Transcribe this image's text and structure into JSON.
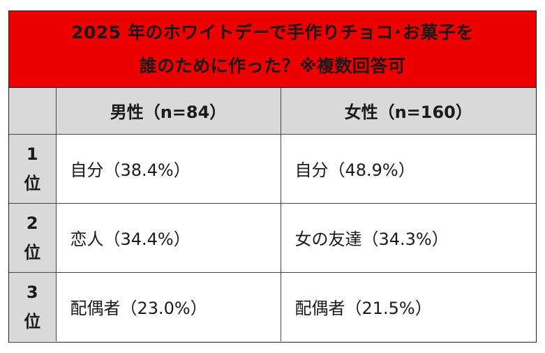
{
  "title": {
    "line1": "2025 年のホワイトデーで手作りチョコ･お菓子を",
    "line2": "誰のために作った？※複数回答可"
  },
  "colors": {
    "title_bg": "#ee0000",
    "header_bg": "#d9d9d9"
  },
  "columns": {
    "male": "男性（n=84）",
    "female": "女性（n=160）"
  },
  "rows": [
    {
      "rank_num": "1",
      "rank_suffix": "位",
      "male": "自分（38.4%）",
      "female": "自分（48.9%）"
    },
    {
      "rank_num": "2",
      "rank_suffix": "位",
      "male": "恋人（34.4%）",
      "female": "女の友達（34.3%）"
    },
    {
      "rank_num": "3",
      "rank_suffix": "位",
      "male": "配偶者（23.0%）",
      "female": "配偶者（21.5%）"
    }
  ]
}
